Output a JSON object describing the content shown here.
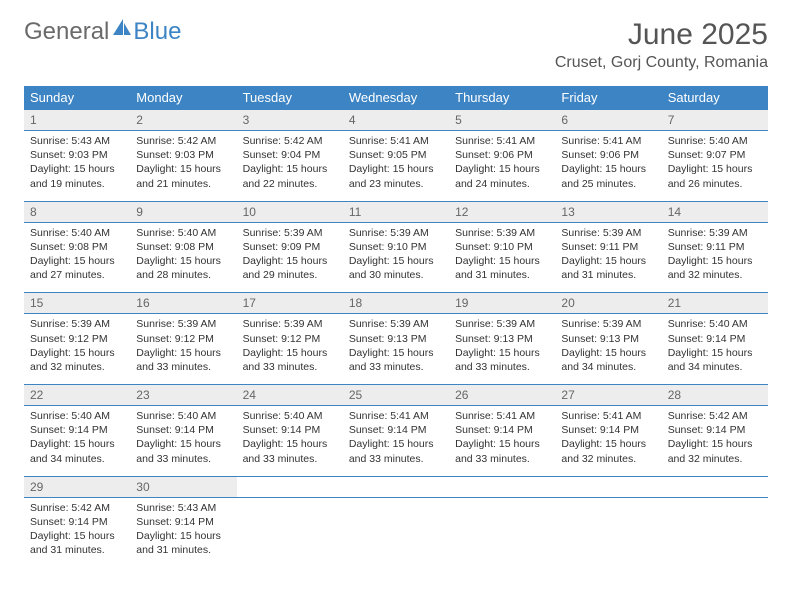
{
  "logo": {
    "text1": "General",
    "text2": "Blue",
    "text1_color": "#6a6a6a",
    "text2_color": "#3d84c4"
  },
  "title": "June 2025",
  "location": "Cruset, Gorj County, Romania",
  "dow": [
    "Sunday",
    "Monday",
    "Tuesday",
    "Wednesday",
    "Thursday",
    "Friday",
    "Saturday"
  ],
  "colors": {
    "header_bg": "#3d84c4",
    "daynum_bg": "#ededed",
    "row_border": "#3d84c4"
  },
  "weeks": [
    {
      "nums": [
        "1",
        "2",
        "3",
        "4",
        "5",
        "6",
        "7"
      ],
      "cells": [
        {
          "sunrise": "Sunrise: 5:43 AM",
          "sunset": "Sunset: 9:03 PM",
          "d1": "Daylight: 15 hours",
          "d2": "and 19 minutes."
        },
        {
          "sunrise": "Sunrise: 5:42 AM",
          "sunset": "Sunset: 9:03 PM",
          "d1": "Daylight: 15 hours",
          "d2": "and 21 minutes."
        },
        {
          "sunrise": "Sunrise: 5:42 AM",
          "sunset": "Sunset: 9:04 PM",
          "d1": "Daylight: 15 hours",
          "d2": "and 22 minutes."
        },
        {
          "sunrise": "Sunrise: 5:41 AM",
          "sunset": "Sunset: 9:05 PM",
          "d1": "Daylight: 15 hours",
          "d2": "and 23 minutes."
        },
        {
          "sunrise": "Sunrise: 5:41 AM",
          "sunset": "Sunset: 9:06 PM",
          "d1": "Daylight: 15 hours",
          "d2": "and 24 minutes."
        },
        {
          "sunrise": "Sunrise: 5:41 AM",
          "sunset": "Sunset: 9:06 PM",
          "d1": "Daylight: 15 hours",
          "d2": "and 25 minutes."
        },
        {
          "sunrise": "Sunrise: 5:40 AM",
          "sunset": "Sunset: 9:07 PM",
          "d1": "Daylight: 15 hours",
          "d2": "and 26 minutes."
        }
      ]
    },
    {
      "nums": [
        "8",
        "9",
        "10",
        "11",
        "12",
        "13",
        "14"
      ],
      "cells": [
        {
          "sunrise": "Sunrise: 5:40 AM",
          "sunset": "Sunset: 9:08 PM",
          "d1": "Daylight: 15 hours",
          "d2": "and 27 minutes."
        },
        {
          "sunrise": "Sunrise: 5:40 AM",
          "sunset": "Sunset: 9:08 PM",
          "d1": "Daylight: 15 hours",
          "d2": "and 28 minutes."
        },
        {
          "sunrise": "Sunrise: 5:39 AM",
          "sunset": "Sunset: 9:09 PM",
          "d1": "Daylight: 15 hours",
          "d2": "and 29 minutes."
        },
        {
          "sunrise": "Sunrise: 5:39 AM",
          "sunset": "Sunset: 9:10 PM",
          "d1": "Daylight: 15 hours",
          "d2": "and 30 minutes."
        },
        {
          "sunrise": "Sunrise: 5:39 AM",
          "sunset": "Sunset: 9:10 PM",
          "d1": "Daylight: 15 hours",
          "d2": "and 31 minutes."
        },
        {
          "sunrise": "Sunrise: 5:39 AM",
          "sunset": "Sunset: 9:11 PM",
          "d1": "Daylight: 15 hours",
          "d2": "and 31 minutes."
        },
        {
          "sunrise": "Sunrise: 5:39 AM",
          "sunset": "Sunset: 9:11 PM",
          "d1": "Daylight: 15 hours",
          "d2": "and 32 minutes."
        }
      ]
    },
    {
      "nums": [
        "15",
        "16",
        "17",
        "18",
        "19",
        "20",
        "21"
      ],
      "cells": [
        {
          "sunrise": "Sunrise: 5:39 AM",
          "sunset": "Sunset: 9:12 PM",
          "d1": "Daylight: 15 hours",
          "d2": "and 32 minutes."
        },
        {
          "sunrise": "Sunrise: 5:39 AM",
          "sunset": "Sunset: 9:12 PM",
          "d1": "Daylight: 15 hours",
          "d2": "and 33 minutes."
        },
        {
          "sunrise": "Sunrise: 5:39 AM",
          "sunset": "Sunset: 9:12 PM",
          "d1": "Daylight: 15 hours",
          "d2": "and 33 minutes."
        },
        {
          "sunrise": "Sunrise: 5:39 AM",
          "sunset": "Sunset: 9:13 PM",
          "d1": "Daylight: 15 hours",
          "d2": "and 33 minutes."
        },
        {
          "sunrise": "Sunrise: 5:39 AM",
          "sunset": "Sunset: 9:13 PM",
          "d1": "Daylight: 15 hours",
          "d2": "and 33 minutes."
        },
        {
          "sunrise": "Sunrise: 5:39 AM",
          "sunset": "Sunset: 9:13 PM",
          "d1": "Daylight: 15 hours",
          "d2": "and 34 minutes."
        },
        {
          "sunrise": "Sunrise: 5:40 AM",
          "sunset": "Sunset: 9:14 PM",
          "d1": "Daylight: 15 hours",
          "d2": "and 34 minutes."
        }
      ]
    },
    {
      "nums": [
        "22",
        "23",
        "24",
        "25",
        "26",
        "27",
        "28"
      ],
      "cells": [
        {
          "sunrise": "Sunrise: 5:40 AM",
          "sunset": "Sunset: 9:14 PM",
          "d1": "Daylight: 15 hours",
          "d2": "and 34 minutes."
        },
        {
          "sunrise": "Sunrise: 5:40 AM",
          "sunset": "Sunset: 9:14 PM",
          "d1": "Daylight: 15 hours",
          "d2": "and 33 minutes."
        },
        {
          "sunrise": "Sunrise: 5:40 AM",
          "sunset": "Sunset: 9:14 PM",
          "d1": "Daylight: 15 hours",
          "d2": "and 33 minutes."
        },
        {
          "sunrise": "Sunrise: 5:41 AM",
          "sunset": "Sunset: 9:14 PM",
          "d1": "Daylight: 15 hours",
          "d2": "and 33 minutes."
        },
        {
          "sunrise": "Sunrise: 5:41 AM",
          "sunset": "Sunset: 9:14 PM",
          "d1": "Daylight: 15 hours",
          "d2": "and 33 minutes."
        },
        {
          "sunrise": "Sunrise: 5:41 AM",
          "sunset": "Sunset: 9:14 PM",
          "d1": "Daylight: 15 hours",
          "d2": "and 32 minutes."
        },
        {
          "sunrise": "Sunrise: 5:42 AM",
          "sunset": "Sunset: 9:14 PM",
          "d1": "Daylight: 15 hours",
          "d2": "and 32 minutes."
        }
      ]
    },
    {
      "nums": [
        "29",
        "30",
        "",
        "",
        "",
        "",
        ""
      ],
      "cells": [
        {
          "sunrise": "Sunrise: 5:42 AM",
          "sunset": "Sunset: 9:14 PM",
          "d1": "Daylight: 15 hours",
          "d2": "and 31 minutes."
        },
        {
          "sunrise": "Sunrise: 5:43 AM",
          "sunset": "Sunset: 9:14 PM",
          "d1": "Daylight: 15 hours",
          "d2": "and 31 minutes."
        },
        null,
        null,
        null,
        null,
        null
      ]
    }
  ]
}
